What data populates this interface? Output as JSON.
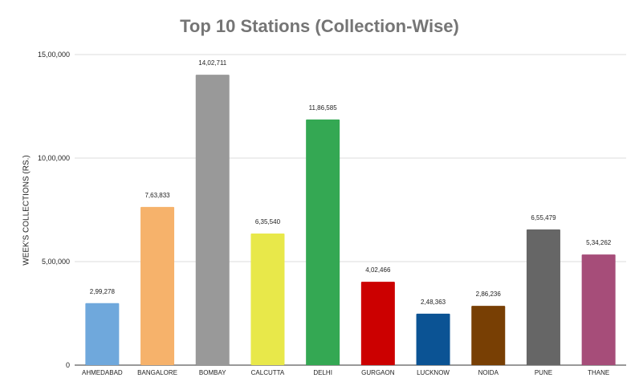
{
  "chart_data": {
    "type": "bar",
    "title": "Top 10 Stations (Collection-Wise)",
    "xlabel": "",
    "ylabel": "WEEK'S COLLECTIONS (RS.)",
    "categories": [
      "AHMEDABAD",
      "BANGALORE",
      "BOMBAY",
      "CALCUTTA",
      "DELHI",
      "GURGAON",
      "LUCKNOW",
      "NOIDA",
      "PUNE",
      "THANE"
    ],
    "values": [
      299278,
      763833,
      1402711,
      635540,
      1186585,
      402466,
      248363,
      286236,
      655479,
      534262
    ],
    "value_labels": [
      "2,99,278",
      "7,63,833",
      "14,02,711",
      "6,35,540",
      "11,86,585",
      "4,02,466",
      "2,48,363",
      "2,86,236",
      "6,55,479",
      "5,34,262"
    ],
    "colors": [
      "#6fa8dc",
      "#f6b26b",
      "#999999",
      "#e8e84a",
      "#34a853",
      "#cc0000",
      "#0b5394",
      "#783f04",
      "#666666",
      "#a64d79"
    ],
    "ylim": [
      0,
      1500000
    ],
    "yticks": [
      0,
      500000,
      1000000,
      1500000
    ],
    "ytick_labels": [
      "0",
      "5,00,000",
      "10,00,000",
      "15,00,000"
    ],
    "grid": true,
    "legend": "none"
  }
}
